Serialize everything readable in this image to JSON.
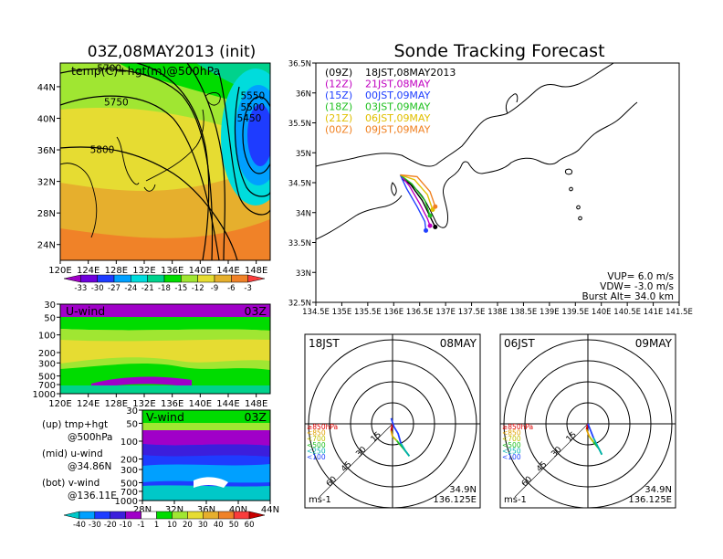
{
  "left_title": "03Z,08MAY2013 (init)",
  "right_title": "Sonde Tracking Forecast",
  "chart_data": [
    {
      "type": "heatmap",
      "name": "temp-hgt-500hPa",
      "overlay_label": "temp(C)+hgt(m)@500hPa",
      "lon_ticks": [
        "120E",
        "124E",
        "128E",
        "132E",
        "136E",
        "140E",
        "144E",
        "148E"
      ],
      "lat_ticks": [
        "44N",
        "40N",
        "36N",
        "32N",
        "28N",
        "24N"
      ],
      "xlim": [
        120,
        150
      ],
      "ylim": [
        22,
        47
      ],
      "contour_labels": [
        {
          "text": "5700",
          "lon": 127.0,
          "lat": 45.9
        },
        {
          "text": "5750",
          "lon": 128.0,
          "lat": 41.6
        },
        {
          "text": "5800",
          "lon": 126.0,
          "lat": 35.6
        },
        {
          "text": "5550",
          "lon": 147.5,
          "lat": 42.4
        },
        {
          "text": "5500",
          "lon": 147.5,
          "lat": 41.0
        },
        {
          "text": "5450",
          "lon": 147.0,
          "lat": 39.6
        }
      ],
      "colorbar": {
        "labels": [
          "-33",
          "-30",
          "-27",
          "-24",
          "-21",
          "-18",
          "-15",
          "-12",
          "-9",
          "-6",
          "-3"
        ],
        "colors": [
          "#a000c8",
          "#6e00dc",
          "#1e3cff",
          "#00a0ff",
          "#00dcdc",
          "#00d28c",
          "#00dc00",
          "#a0e632",
          "#e6dc32",
          "#e6af2d",
          "#f08228",
          "#fa3c3c"
        ]
      }
    },
    {
      "type": "heatmap",
      "name": "u-wind",
      "panel_label": "U-wind",
      "time_label": "03Z",
      "x_ticks": [
        "120E",
        "124E",
        "128E",
        "132E",
        "136E",
        "140E",
        "144E",
        "148E"
      ],
      "y_ticks": [
        "30",
        "50",
        "100",
        "200",
        "300",
        "500",
        "700",
        "1000"
      ],
      "xlim": [
        120,
        150
      ],
      "ylim": [
        1000,
        30
      ],
      "yscale": "log"
    },
    {
      "type": "heatmap",
      "name": "v-wind",
      "panel_label": "V-wind",
      "time_label": "03Z",
      "x_ticks": [
        "28N",
        "32N",
        "36N",
        "40N",
        "44N"
      ],
      "y_ticks": [
        "30",
        "50",
        "100",
        "200",
        "300",
        "500",
        "700",
        "1000"
      ],
      "xlim": [
        28,
        44
      ],
      "ylim": [
        1000,
        30
      ],
      "yscale": "log",
      "colorbar": {
        "labels": [
          "-40",
          "-30",
          "-20",
          "-10",
          "-1",
          "1",
          "10",
          "20",
          "30",
          "40",
          "50",
          "60"
        ],
        "colors": [
          "#00c8c8",
          "#00a0ff",
          "#1e3cff",
          "#3c1edc",
          "#a000c8",
          "#ffffff",
          "#00dc00",
          "#a0e632",
          "#e6dc32",
          "#e6af2d",
          "#f08228",
          "#fa3c3c",
          "#c80000"
        ]
      }
    },
    {
      "type": "line",
      "name": "sonde-track-map",
      "legend": [
        {
          "tag": "(09Z)",
          "label": "18JST,08MAY2013",
          "color": "#000000"
        },
        {
          "tag": "(12Z)",
          "label": "21JST,08MAY",
          "color": "#c000c0"
        },
        {
          "tag": "(15Z)",
          "label": "00JST,09MAY",
          "color": "#2040ff"
        },
        {
          "tag": "(18Z)",
          "label": "03JST,09MAY",
          "color": "#20c020"
        },
        {
          "tag": "(21Z)",
          "label": "06JST,09MAY",
          "color": "#e0c000"
        },
        {
          "tag": "(00Z)",
          "label": "09JST,09MAY",
          "color": "#f08020"
        }
      ],
      "x_ticks": [
        "134.5E",
        "135E",
        "135.5E",
        "136E",
        "136.5E",
        "137E",
        "137.5E",
        "138E",
        "138.5E",
        "139E",
        "139.5E",
        "140E",
        "140.5E",
        "141E",
        "141.5E"
      ],
      "y_ticks": [
        "36.5N",
        "36N",
        "35.5N",
        "35N",
        "34.5N",
        "34N",
        "33.5N",
        "33N",
        "32.5N"
      ],
      "xlim": [
        134.5,
        141.5
      ],
      "ylim": [
        32.5,
        36.5
      ],
      "series": [
        {
          "color": "#000000",
          "points": [
            [
              136.125,
              34.63
            ],
            [
              136.3,
              34.5
            ],
            [
              136.55,
              34.2
            ],
            [
              136.72,
              33.9
            ],
            [
              136.8,
              33.76
            ]
          ]
        },
        {
          "color": "#c000c0",
          "points": [
            [
              136.125,
              34.63
            ],
            [
              136.3,
              34.45
            ],
            [
              136.5,
              34.15
            ],
            [
              136.65,
              33.9
            ],
            [
              136.7,
              33.78
            ]
          ]
        },
        {
          "color": "#2040ff",
          "points": [
            [
              136.125,
              34.63
            ],
            [
              136.25,
              34.4
            ],
            [
              136.45,
              34.1
            ],
            [
              136.6,
              33.85
            ],
            [
              136.62,
              33.7
            ]
          ]
        },
        {
          "color": "#20c020",
          "points": [
            [
              136.125,
              34.63
            ],
            [
              136.35,
              34.48
            ],
            [
              136.6,
              34.2
            ],
            [
              136.7,
              33.95
            ]
          ]
        },
        {
          "color": "#e0c000",
          "points": [
            [
              136.125,
              34.63
            ],
            [
              136.4,
              34.55
            ],
            [
              136.65,
              34.3
            ],
            [
              136.75,
              34.05
            ]
          ]
        },
        {
          "color": "#f08020",
          "points": [
            [
              136.125,
              34.63
            ],
            [
              136.45,
              34.6
            ],
            [
              136.7,
              34.35
            ],
            [
              136.8,
              34.1
            ]
          ]
        }
      ],
      "info": [
        "VUP= 6.0 m/s",
        "VDW= -3.0 m/s",
        "Burst Alt= 34.0 km"
      ]
    },
    {
      "type": "line",
      "name": "hodograph-18JST",
      "time_label": "18JST",
      "date_label": "08MAY",
      "ring_labels": [
        "15",
        "30",
        "45",
        "60"
      ],
      "ring_values": [
        15,
        30,
        45,
        60
      ],
      "units": "ms-1",
      "position": [
        "34.9N",
        "136.125E"
      ],
      "legend": [
        {
          "label": "≥850hPa",
          "color": "#e00000"
        },
        {
          "label": "<850",
          "color": "#e0a000"
        },
        {
          "label": "<700",
          "color": "#c0c000"
        },
        {
          "label": "<500",
          "color": "#20c020"
        },
        {
          "label": "<250",
          "color": "#00b0b0"
        },
        {
          "label": "<100",
          "color": "#2040ff"
        }
      ],
      "series": [
        {
          "color": "#e00000",
          "points": [
            [
              0,
              0
            ],
            [
              -1,
              -5
            ]
          ]
        },
        {
          "color": "#e0a000",
          "points": [
            [
              -1,
              -5
            ],
            [
              0,
              -9
            ]
          ]
        },
        {
          "color": "#c0c000",
          "points": [
            [
              0,
              -9
            ],
            [
              3,
              -12
            ]
          ]
        },
        {
          "color": "#20c020",
          "points": [
            [
              3,
              -12
            ],
            [
              8,
              -18
            ],
            [
              12,
              -23
            ]
          ]
        },
        {
          "color": "#00b0b0",
          "points": [
            [
              12,
              -23
            ],
            [
              9,
              -19
            ],
            [
              6,
              -14
            ]
          ]
        },
        {
          "color": "#2040ff",
          "points": [
            [
              6,
              -14
            ],
            [
              4,
              -7
            ],
            [
              1,
              -2
            ],
            [
              -1,
              4
            ]
          ]
        }
      ]
    },
    {
      "type": "line",
      "name": "hodograph-06JST",
      "time_label": "06JST",
      "date_label": "09MAY",
      "ring_labels": [
        "15",
        "30",
        "45",
        "60"
      ],
      "ring_values": [
        15,
        30,
        45,
        60
      ],
      "units": "ms-1",
      "position": [
        "34.9N",
        "136.125E"
      ],
      "legend": [
        {
          "label": "≥850hPa",
          "color": "#e00000"
        },
        {
          "label": "<850",
          "color": "#e0a000"
        },
        {
          "label": "<700",
          "color": "#c0c000"
        },
        {
          "label": "<500",
          "color": "#20c020"
        },
        {
          "label": "<250",
          "color": "#00b0b0"
        },
        {
          "label": "<100",
          "color": "#2040ff"
        }
      ],
      "series": [
        {
          "color": "#e00000",
          "points": [
            [
              0,
              0
            ],
            [
              -1,
              -4
            ]
          ]
        },
        {
          "color": "#e0a000",
          "points": [
            [
              -1,
              -4
            ],
            [
              1,
              -9
            ]
          ]
        },
        {
          "color": "#c0c000",
          "points": [
            [
              1,
              -9
            ],
            [
              4,
              -13
            ]
          ]
        },
        {
          "color": "#20c020",
          "points": [
            [
              4,
              -13
            ],
            [
              8,
              -18
            ],
            [
              10,
              -22
            ]
          ]
        },
        {
          "color": "#00b0b0",
          "points": [
            [
              10,
              -22
            ],
            [
              7,
              -16
            ],
            [
              4,
              -10
            ]
          ]
        },
        {
          "color": "#2040ff",
          "points": [
            [
              4,
              -10
            ],
            [
              2,
              -5
            ],
            [
              0,
              0
            ]
          ]
        }
      ]
    }
  ],
  "notes": {
    "up_line1": "(up) tmp+hgt",
    "up_line2": "@500hPa",
    "mid_line1": "(mid) u-wind",
    "mid_line2": "@34.86N",
    "bot_line1": "(bot) v-wind",
    "bot_line2": "@136.11E"
  }
}
